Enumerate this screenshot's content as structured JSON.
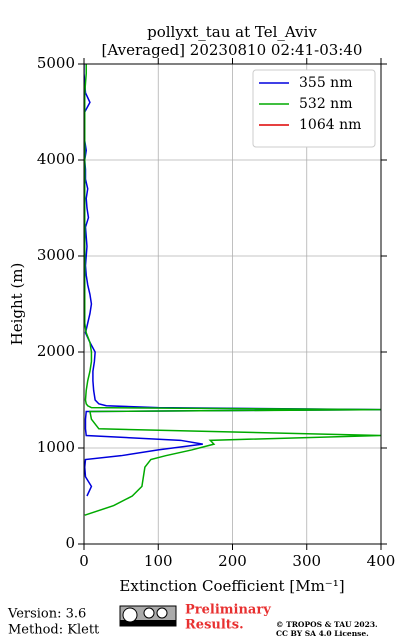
{
  "chart_data": {
    "type": "line",
    "title": "pollyxt_tau at Tel_Aviv",
    "subtitle": "[Averaged] 20230810 02:41-03:40",
    "x_label": "Extinction Coefficient [Mm⁻¹]",
    "y_label": "Height (m)",
    "heights": [
      300,
      400,
      500,
      600,
      700,
      800,
      880,
      920,
      980,
      1040,
      1080,
      1130,
      1200,
      1300,
      1380,
      1400,
      1420,
      1440,
      1460,
      1500,
      1600,
      1700,
      1800,
      1900,
      2000,
      2100,
      2200,
      2300,
      2400,
      2500,
      2600,
      2700,
      2800,
      2900,
      3000,
      3100,
      3200,
      3300,
      3400,
      3500,
      3600,
      3700,
      3800,
      3900,
      4000,
      4100,
      4200,
      4300,
      4400,
      4500,
      4600,
      4700,
      4800,
      4900,
      5000
    ],
    "series": [
      {
        "name": "355 nm",
        "color": "#0000dd",
        "values": [
          null,
          null,
          4,
          10,
          2,
          1,
          2,
          50,
          100,
          160,
          130,
          3,
          2,
          2,
          3,
          400,
          100,
          30,
          20,
          15,
          13,
          12,
          12,
          14,
          15,
          8,
          2,
          5,
          8,
          10,
          8,
          5,
          3,
          2,
          3,
          4,
          3,
          2,
          6,
          4,
          3,
          5,
          2,
          2,
          1,
          3,
          1,
          1,
          1,
          1,
          8,
          2,
          1,
          0,
          0
        ]
      },
      {
        "name": "532 nm",
        "color": "#00aa00",
        "values": [
          1,
          40,
          65,
          78,
          80,
          82,
          90,
          110,
          145,
          175,
          170,
          400,
          20,
          10,
          8,
          400,
          10,
          5,
          3,
          2,
          3,
          5,
          8,
          10,
          10,
          8,
          3,
          1,
          1,
          1,
          1,
          1,
          1,
          1,
          1,
          1,
          1,
          1,
          1,
          1,
          1,
          1,
          1,
          1,
          1,
          1,
          1,
          1,
          1,
          1,
          1,
          1,
          2,
          3,
          3
        ]
      },
      {
        "name": "1064 nm",
        "color": "#dd0000",
        "values": [
          null,
          null,
          null,
          null,
          null,
          null,
          null,
          null,
          null,
          null,
          null,
          null,
          null,
          null,
          null,
          null,
          null,
          null,
          null,
          null,
          null,
          null,
          null,
          null,
          null,
          null,
          null,
          null,
          null,
          null,
          null,
          null,
          null,
          null,
          null,
          null,
          null,
          null,
          null,
          null,
          null,
          null,
          null,
          null,
          null,
          null,
          null,
          null,
          null,
          null,
          null,
          null,
          null,
          null,
          null
        ]
      }
    ],
    "xlim": [
      0,
      400
    ],
    "xticks": [
      0,
      100,
      200,
      300,
      400
    ],
    "ylim": [
      0,
      5000
    ],
    "yticks": [
      0,
      1000,
      2000,
      3000,
      4000,
      5000
    ],
    "grid": true,
    "legend": "upper right"
  },
  "footer": {
    "version": "Version: 3.6",
    "method": "Method: Klett",
    "preliminary": [
      "Preliminary",
      "Results."
    ],
    "copyright": [
      "© TROPOS & TAU 2023.",
      "CC BY SA 4.0 License."
    ]
  }
}
